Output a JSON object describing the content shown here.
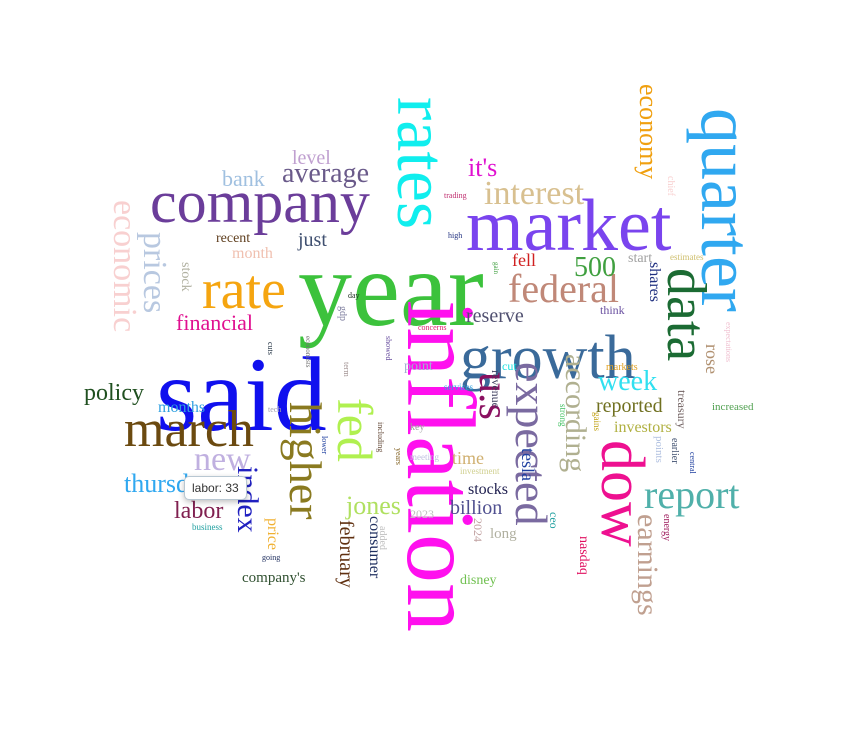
{
  "chart_data": {
    "type": "wordcloud",
    "words": [
      {
        "text": "year",
        "color": "#3cc23c"
      },
      {
        "text": "said",
        "color": "#1010ee"
      },
      {
        "text": "inflation",
        "color": "#ff10ee"
      },
      {
        "text": "market",
        "color": "#7a44ee"
      },
      {
        "text": "rates",
        "color": "#10eeee"
      },
      {
        "text": "company",
        "color": "#6b3d9a"
      },
      {
        "text": "quarter",
        "color": "#30a8f0"
      },
      {
        "text": "growth",
        "color": "#3a6a9a"
      },
      {
        "text": "rate",
        "color": "#f5a510"
      },
      {
        "text": "data",
        "color": "#1b6b33"
      },
      {
        "text": "dow",
        "color": "#ee1090"
      },
      {
        "text": "march",
        "color": "#6b4a10"
      },
      {
        "text": "higher",
        "color": "#8a7a20"
      },
      {
        "text": "fed",
        "color": "#b0f050"
      },
      {
        "text": "expected",
        "color": "#7a6aa0"
      },
      {
        "text": "u.s",
        "color": "#8a1060"
      },
      {
        "text": "report",
        "color": "#50b0aa"
      },
      {
        "text": "federal",
        "color": "#c08878"
      },
      {
        "text": "interest",
        "color": "#d8c090"
      },
      {
        "text": "economic",
        "color": "#f8d0d0"
      },
      {
        "text": "prices",
        "color": "#b8c8e0"
      },
      {
        "text": "according",
        "color": "#b0b090"
      },
      {
        "text": "earnings",
        "color": "#c0a090"
      },
      {
        "text": "economy",
        "color": "#f0a010"
      },
      {
        "text": "new",
        "color": "#c0b0e0"
      },
      {
        "text": "index",
        "color": "#2020c0"
      },
      {
        "text": "average",
        "color": "#6a5a8a"
      },
      {
        "text": "500",
        "color": "#40a040"
      },
      {
        "text": "week",
        "color": "#30e0f0"
      },
      {
        "text": "thursday",
        "color": "#30a8f0"
      },
      {
        "text": "jones",
        "color": "#b0e060"
      },
      {
        "text": "policy",
        "color": "#205020"
      },
      {
        "text": "labor",
        "color": "#802050"
      },
      {
        "text": "bank",
        "color": "#a0c0e0"
      },
      {
        "text": "level",
        "color": "#c0a0d0"
      },
      {
        "text": "it's",
        "color": "#e010d0"
      },
      {
        "text": "financial",
        "color": "#e01090"
      },
      {
        "text": "reserve",
        "color": "#505070"
      },
      {
        "text": "reported",
        "color": "#707020"
      },
      {
        "text": "february",
        "color": "#603010"
      },
      {
        "text": "billion",
        "color": "#505090"
      },
      {
        "text": "just",
        "color": "#405070"
      },
      {
        "text": "tesla",
        "color": "#2040a0"
      },
      {
        "text": "months",
        "color": "#30a0e0"
      },
      {
        "text": "fell",
        "color": "#d02020"
      },
      {
        "text": "rose",
        "color": "#b09070"
      },
      {
        "text": "investors",
        "color": "#b0b040"
      },
      {
        "text": "shares",
        "color": "#203080"
      },
      {
        "text": "stocks",
        "color": "#202050"
      },
      {
        "text": "time",
        "color": "#d0b070"
      },
      {
        "text": "month",
        "color": "#f0c0b0"
      },
      {
        "text": "recent",
        "color": "#604020"
      },
      {
        "text": "stock",
        "color": "#b0b0a0"
      },
      {
        "text": "price",
        "color": "#f0b030"
      },
      {
        "text": "consumer",
        "color": "#203060"
      },
      {
        "text": "company's",
        "color": "#305030"
      },
      {
        "text": "long",
        "color": "#b0b0a0"
      },
      {
        "text": "nasdaq",
        "color": "#e01060"
      },
      {
        "text": "disney",
        "color": "#70c050"
      },
      {
        "text": "start",
        "color": "#a0a0a0"
      },
      {
        "text": "point",
        "color": "#a0b0d0"
      },
      {
        "text": "revenue",
        "color": "#404060"
      },
      {
        "text": "treasury",
        "color": "#706060"
      },
      {
        "text": "increased",
        "color": "#50a050"
      },
      {
        "text": "points",
        "color": "#b0c0e0"
      },
      {
        "text": "2024",
        "color": "#c0a0a0"
      },
      {
        "text": "2023",
        "color": "#c0c0c0"
      },
      {
        "text": "ceo",
        "color": "#20a0a0"
      },
      {
        "text": "cut",
        "color": "#20e0e0"
      },
      {
        "text": "think",
        "color": "#6a50a0"
      },
      {
        "text": "markets",
        "color": "#e0a020"
      },
      {
        "text": "estimates",
        "color": "#d0c070"
      },
      {
        "text": "chief",
        "color": "#f8d0d0"
      },
      {
        "text": "expectations",
        "color": "#f0c0d0"
      },
      {
        "text": "earlier",
        "color": "#405070"
      },
      {
        "text": "central",
        "color": "#2040a0"
      },
      {
        "text": "energy",
        "color": "#a02060"
      },
      {
        "text": "gains",
        "color": "#c0a010"
      },
      {
        "text": "strong",
        "color": "#40c060"
      },
      {
        "text": "key",
        "color": "#a0a0a0"
      },
      {
        "text": "meeting",
        "color": "#c0c0e0"
      },
      {
        "text": "investment",
        "color": "#d0d090"
      },
      {
        "text": "added",
        "color": "#c0c0c0"
      },
      {
        "text": "going",
        "color": "#203060"
      },
      {
        "text": "business",
        "color": "#20a0a0"
      },
      {
        "text": "trading",
        "color": "#c03070"
      },
      {
        "text": "high",
        "color": "#203080"
      },
      {
        "text": "gdp",
        "color": "#8080a0"
      },
      {
        "text": "day",
        "color": "#203020"
      },
      {
        "text": "concerns",
        "color": "#e02070"
      },
      {
        "text": "showed",
        "color": "#6a50a0"
      },
      {
        "text": "term",
        "color": "#a09090"
      },
      {
        "text": "economists",
        "color": "#707070"
      },
      {
        "text": "cuts",
        "color": "#203040"
      },
      {
        "text": "tech",
        "color": "#a0a0b0"
      },
      {
        "text": "lower",
        "color": "#2040a0"
      },
      {
        "text": "including",
        "color": "#6a5040"
      },
      {
        "text": "years",
        "color": "#806020"
      },
      {
        "text": "services",
        "color": "#30a0e0"
      },
      {
        "text": "gain",
        "color": "#40a040"
      }
    ]
  },
  "tooltip": {
    "text": "labor: 33"
  }
}
